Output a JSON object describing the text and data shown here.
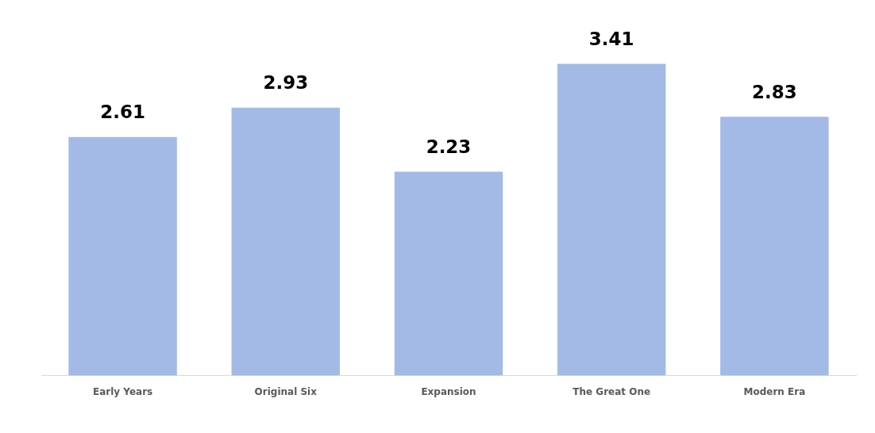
{
  "chart_data": {
    "type": "bar",
    "categories": [
      "Early Years",
      "Original Six",
      "Expansion",
      "The Great One",
      "Modern Era"
    ],
    "values": [
      2.61,
      2.93,
      2.23,
      3.41,
      2.83
    ],
    "color": "#a3bae6",
    "data_labels": true,
    "grid": false,
    "legend": false
  }
}
